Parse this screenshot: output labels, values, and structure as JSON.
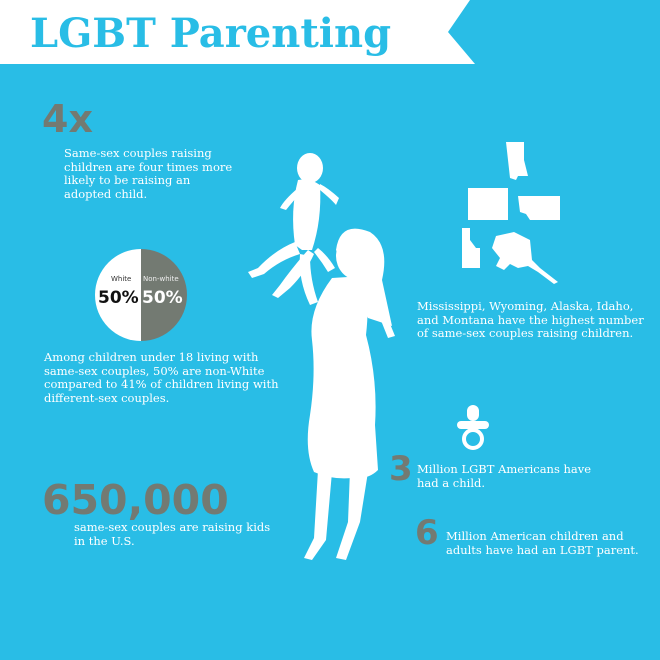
{
  "title": "LGBT Parenting",
  "stat_4x": {
    "number": "4x",
    "text": "Same-sex couples raising children are four times more likely to be raising an adopted child."
  },
  "pie": {
    "white_label": "White",
    "nonwhite_label": "Non-white",
    "white_value": "50%",
    "nonwhite_value": "50%",
    "text": "Among children under 18 living with same-sex couples, 50% are non-White compared to 41% of children living with different-sex couples."
  },
  "stat_650k": {
    "number": "650,000",
    "text": "same-sex couples are raising kids in the U.S."
  },
  "states_text": "Mississippi, Wyoming, Alaska, Idaho, and Montana have the highest number of same-sex couples raising children.",
  "stat_3": {
    "number": "3",
    "text": "Million LGBT Americans have had a child."
  },
  "stat_6": {
    "number": "6",
    "text": "Million American children and adults have had an LGBT parent."
  },
  "colors": {
    "background": "#29bde6",
    "accent_gray": "#737a72",
    "text": "#ffffff"
  }
}
